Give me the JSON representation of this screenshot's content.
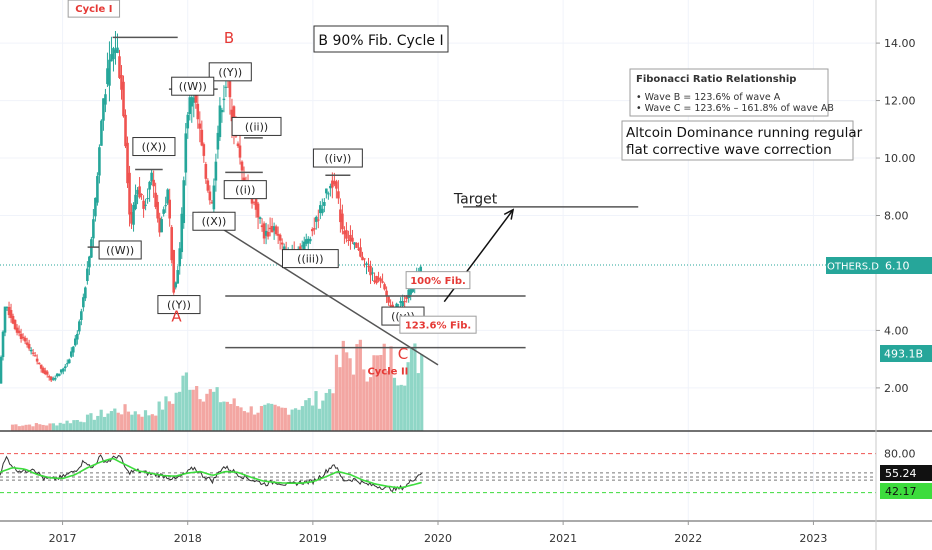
{
  "chart_data": {
    "type": "candlestick",
    "symbol": "OTHERS.D",
    "title": "B 90%  Fib. Cycle I",
    "x_axis": {
      "ticks": [
        "2017",
        "2018",
        "2019",
        "2020",
        "2021",
        "2022",
        "2023"
      ],
      "range": [
        2016.5,
        2023.5
      ]
    },
    "y_axis": {
      "scale": "linear",
      "ticks": [
        "14.00",
        "12.00",
        "10.00",
        "8.00",
        "4.00",
        "2.00"
      ],
      "range": [
        0.5,
        15.5
      ]
    },
    "price_badges": {
      "last": "6.10",
      "volume": "493.1B"
    },
    "price_path": [
      [
        2016.5,
        2.2
      ],
      [
        2016.55,
        5.0
      ],
      [
        2016.62,
        4.2
      ],
      [
        2016.7,
        3.6
      ],
      [
        2016.78,
        3.1
      ],
      [
        2016.85,
        2.6
      ],
      [
        2016.92,
        2.3
      ],
      [
        2016.98,
        2.5
      ],
      [
        2017.05,
        2.9
      ],
      [
        2017.12,
        3.8
      ],
      [
        2017.18,
        5.3
      ],
      [
        2017.22,
        6.5
      ],
      [
        2017.28,
        9.0
      ],
      [
        2017.33,
        12.0
      ],
      [
        2017.4,
        13.6
      ],
      [
        2017.44,
        14.0
      ],
      [
        2017.5,
        11.5
      ],
      [
        2017.55,
        7.5
      ],
      [
        2017.6,
        9.0
      ],
      [
        2017.66,
        8.4
      ],
      [
        2017.72,
        9.3
      ],
      [
        2017.78,
        7.5
      ],
      [
        2017.85,
        8.8
      ],
      [
        2017.9,
        5.2
      ],
      [
        2017.95,
        7.0
      ],
      [
        2018.0,
        11.5
      ],
      [
        2018.05,
        12.4
      ],
      [
        2018.1,
        11.0
      ],
      [
        2018.15,
        9.4
      ],
      [
        2018.2,
        8.3
      ],
      [
        2018.26,
        11.5
      ],
      [
        2018.32,
        12.7
      ],
      [
        2018.38,
        11.0
      ],
      [
        2018.44,
        9.5
      ],
      [
        2018.5,
        8.8
      ],
      [
        2018.56,
        8.2
      ],
      [
        2018.62,
        7.3
      ],
      [
        2018.7,
        7.6
      ],
      [
        2018.76,
        6.9
      ],
      [
        2018.82,
        6.6
      ],
      [
        2018.88,
        6.8
      ],
      [
        2018.94,
        7.0
      ],
      [
        2019.02,
        7.6
      ],
      [
        2019.1,
        8.6
      ],
      [
        2019.18,
        9.3
      ],
      [
        2019.24,
        7.6
      ],
      [
        2019.32,
        7.0
      ],
      [
        2019.4,
        6.6
      ],
      [
        2019.48,
        5.9
      ],
      [
        2019.56,
        5.6
      ],
      [
        2019.64,
        4.7
      ],
      [
        2019.7,
        4.9
      ],
      [
        2019.76,
        5.2
      ],
      [
        2019.82,
        5.7
      ],
      [
        2019.87,
        6.1
      ]
    ],
    "volume_path": [
      [
        2016.6,
        0.3
      ],
      [
        2016.9,
        0.3
      ],
      [
        2017.2,
        0.6
      ],
      [
        2017.45,
        1.0
      ],
      [
        2017.7,
        0.8
      ],
      [
        2017.9,
        1.6
      ],
      [
        2018.0,
        2.6
      ],
      [
        2018.1,
        2.0
      ],
      [
        2018.3,
        1.4
      ],
      [
        2018.5,
        1.0
      ],
      [
        2018.75,
        1.0
      ],
      [
        2018.95,
        1.3
      ],
      [
        2019.1,
        1.6
      ],
      [
        2019.25,
        3.5
      ],
      [
        2019.4,
        3.4
      ],
      [
        2019.5,
        3.1
      ],
      [
        2019.6,
        3.4
      ],
      [
        2019.7,
        2.9
      ],
      [
        2019.8,
        3.3
      ],
      [
        2019.87,
        3.6
      ]
    ],
    "wave_labels": [
      {
        "text": "Cycle I",
        "x": 2017.25,
        "y": 15.2,
        "color": "#e53935",
        "boxed": true,
        "bold": true
      },
      {
        "text": "B",
        "x": 2018.33,
        "y": 14.2,
        "color": "#e53935",
        "boxed": false,
        "bold": false
      },
      {
        "text": "((Y))",
        "x": 2018.34,
        "y": 13.0,
        "color": "#222222",
        "boxed": true,
        "bold": false
      },
      {
        "text": "((W))",
        "x": 2018.04,
        "y": 12.5,
        "color": "#222222",
        "boxed": true,
        "bold": false
      },
      {
        "text": "((ii))",
        "x": 2018.55,
        "y": 11.1,
        "color": "#222222",
        "boxed": true,
        "bold": false
      },
      {
        "text": "((X))",
        "x": 2017.73,
        "y": 10.4,
        "color": "#222222",
        "boxed": true,
        "bold": false
      },
      {
        "text": "((iv))",
        "x": 2019.2,
        "y": 10.0,
        "color": "#222222",
        "boxed": true,
        "bold": false
      },
      {
        "text": "((i))",
        "x": 2018.46,
        "y": 8.9,
        "color": "#222222",
        "boxed": true,
        "bold": false
      },
      {
        "text": "((X))",
        "x": 2018.21,
        "y": 7.8,
        "color": "#222222",
        "boxed": true,
        "bold": false
      },
      {
        "text": "((W))",
        "x": 2017.46,
        "y": 6.8,
        "color": "#222222",
        "boxed": true,
        "bold": false
      },
      {
        "text": "((iii))",
        "x": 2018.98,
        "y": 6.5,
        "color": "#222222",
        "boxed": true,
        "bold": false
      },
      {
        "text": "((Y))",
        "x": 2017.93,
        "y": 4.9,
        "color": "#222222",
        "boxed": true,
        "bold": false
      },
      {
        "text": "A",
        "x": 2017.91,
        "y": 4.5,
        "color": "#e53935",
        "boxed": false,
        "bold": false
      },
      {
        "text": "((v))",
        "x": 2019.72,
        "y": 4.5,
        "color": "#222222",
        "boxed": true,
        "bold": false
      },
      {
        "text": "C",
        "x": 2019.72,
        "y": 3.2,
        "color": "#e53935",
        "boxed": false,
        "bold": false
      },
      {
        "text": "Cycle II",
        "x": 2019.6,
        "y": 2.6,
        "color": "#e53935",
        "boxed": false,
        "bold": true
      },
      {
        "text": "100% Fib.",
        "x": 2020.0,
        "y": 5.75,
        "color": "#e53935",
        "boxed": true,
        "bold": true
      },
      {
        "text": "123.6% Fib.",
        "x": 2020.0,
        "y": 4.2,
        "color": "#e53935",
        "boxed": true,
        "bold": true
      },
      {
        "text": "Target",
        "x": 2020.3,
        "y": 8.6,
        "color": "#222222",
        "boxed": false,
        "bold": false
      }
    ],
    "level_lines": [
      {
        "x1": 2017.4,
        "x2": 2017.92,
        "y": 14.2
      },
      {
        "x1": 2017.85,
        "x2": 2018.24,
        "y": 12.4
      },
      {
        "x1": 2018.24,
        "x2": 2018.36,
        "y": 12.8
      },
      {
        "x1": 2018.45,
        "x2": 2018.6,
        "y": 10.7
      },
      {
        "x1": 2017.2,
        "x2": 2017.47,
        "y": 6.9
      },
      {
        "x1": 2017.58,
        "x2": 2017.8,
        "y": 9.6
      },
      {
        "x1": 2018.3,
        "x2": 2018.6,
        "y": 9.5
      },
      {
        "x1": 2018.08,
        "x2": 2018.3,
        "y": 8.1
      },
      {
        "x1": 2019.1,
        "x2": 2019.3,
        "y": 9.4
      },
      {
        "x1": 2018.8,
        "x2": 2019.18,
        "y": 6.7
      },
      {
        "x1": 2017.82,
        "x2": 2018.05,
        "y": 5.1
      },
      {
        "x1": 2019.55,
        "x2": 2019.8,
        "y": 4.6
      },
      {
        "x1": 2020.2,
        "x2": 2021.6,
        "y": 8.3
      },
      {
        "x1": 2018.3,
        "x2": 2020.7,
        "y": 5.2
      },
      {
        "x1": 2018.3,
        "x2": 2020.7,
        "y": 3.4
      }
    ],
    "trend_line": {
      "x1": 2018.07,
      "y1": 8.1,
      "x2": 2020.0,
      "y2": 2.8
    },
    "target_arrow": {
      "x1": 2020.05,
      "y1": 5.0,
      "x2": 2020.6,
      "y2": 8.2
    },
    "annotations": {
      "fib_box_title": "Fibonacci Ratio Relationship",
      "fib_box_lines": [
        "• Wave B = 123.6% of wave A",
        "• Wave C = 123.6% – 161.8% of wave AB"
      ],
      "comment_lines": [
        "Altcoin Dominance running regular",
        "flat corrective wave correction"
      ]
    },
    "rsi": {
      "ticks": [
        "80.00"
      ],
      "levels": [
        80,
        30
      ],
      "current": "55.24",
      "average": "42.17",
      "rsi_path": [
        [
          2016.5,
          55
        ],
        [
          2016.55,
          75
        ],
        [
          2016.62,
          60
        ],
        [
          2016.7,
          57
        ],
        [
          2016.76,
          62
        ],
        [
          2016.85,
          48
        ],
        [
          2016.92,
          47
        ],
        [
          2017.0,
          50
        ],
        [
          2017.1,
          58
        ],
        [
          2017.18,
          72
        ],
        [
          2017.23,
          60
        ],
        [
          2017.3,
          76
        ],
        [
          2017.35,
          69
        ],
        [
          2017.45,
          78
        ],
        [
          2017.52,
          56
        ],
        [
          2017.6,
          58
        ],
        [
          2017.7,
          54
        ],
        [
          2017.8,
          52
        ],
        [
          2017.9,
          47
        ],
        [
          2017.98,
          54
        ],
        [
          2018.05,
          62
        ],
        [
          2018.12,
          52
        ],
        [
          2018.2,
          45
        ],
        [
          2018.28,
          63
        ],
        [
          2018.34,
          60
        ],
        [
          2018.42,
          52
        ],
        [
          2018.52,
          46
        ],
        [
          2018.62,
          41
        ],
        [
          2018.7,
          44
        ],
        [
          2018.8,
          40
        ],
        [
          2018.9,
          43
        ],
        [
          2019.0,
          44
        ],
        [
          2019.08,
          53
        ],
        [
          2019.17,
          67
        ],
        [
          2019.24,
          46
        ],
        [
          2019.33,
          47
        ],
        [
          2019.42,
          41
        ],
        [
          2019.5,
          39
        ],
        [
          2019.58,
          36
        ],
        [
          2019.66,
          34
        ],
        [
          2019.74,
          38
        ],
        [
          2019.8,
          47
        ],
        [
          2019.87,
          56
        ]
      ],
      "ma_path": [
        [
          2016.5,
          56
        ],
        [
          2016.6,
          62
        ],
        [
          2016.7,
          60
        ],
        [
          2016.8,
          53
        ],
        [
          2016.9,
          49
        ],
        [
          2017.0,
          48
        ],
        [
          2017.1,
          53
        ],
        [
          2017.2,
          62
        ],
        [
          2017.3,
          69
        ],
        [
          2017.4,
          74
        ],
        [
          2017.5,
          66
        ],
        [
          2017.6,
          58
        ],
        [
          2017.7,
          55
        ],
        [
          2017.8,
          52
        ],
        [
          2017.9,
          51
        ],
        [
          2018.0,
          55
        ],
        [
          2018.1,
          57
        ],
        [
          2018.2,
          52
        ],
        [
          2018.3,
          57
        ],
        [
          2018.4,
          56
        ],
        [
          2018.5,
          50
        ],
        [
          2018.6,
          45
        ],
        [
          2018.7,
          43
        ],
        [
          2018.8,
          42
        ],
        [
          2018.9,
          42
        ],
        [
          2019.0,
          44
        ],
        [
          2019.1,
          50
        ],
        [
          2019.2,
          57
        ],
        [
          2019.3,
          53
        ],
        [
          2019.4,
          46
        ],
        [
          2019.5,
          41
        ],
        [
          2019.6,
          38
        ],
        [
          2019.7,
          36
        ],
        [
          2019.8,
          40
        ],
        [
          2019.87,
          43
        ]
      ]
    }
  }
}
